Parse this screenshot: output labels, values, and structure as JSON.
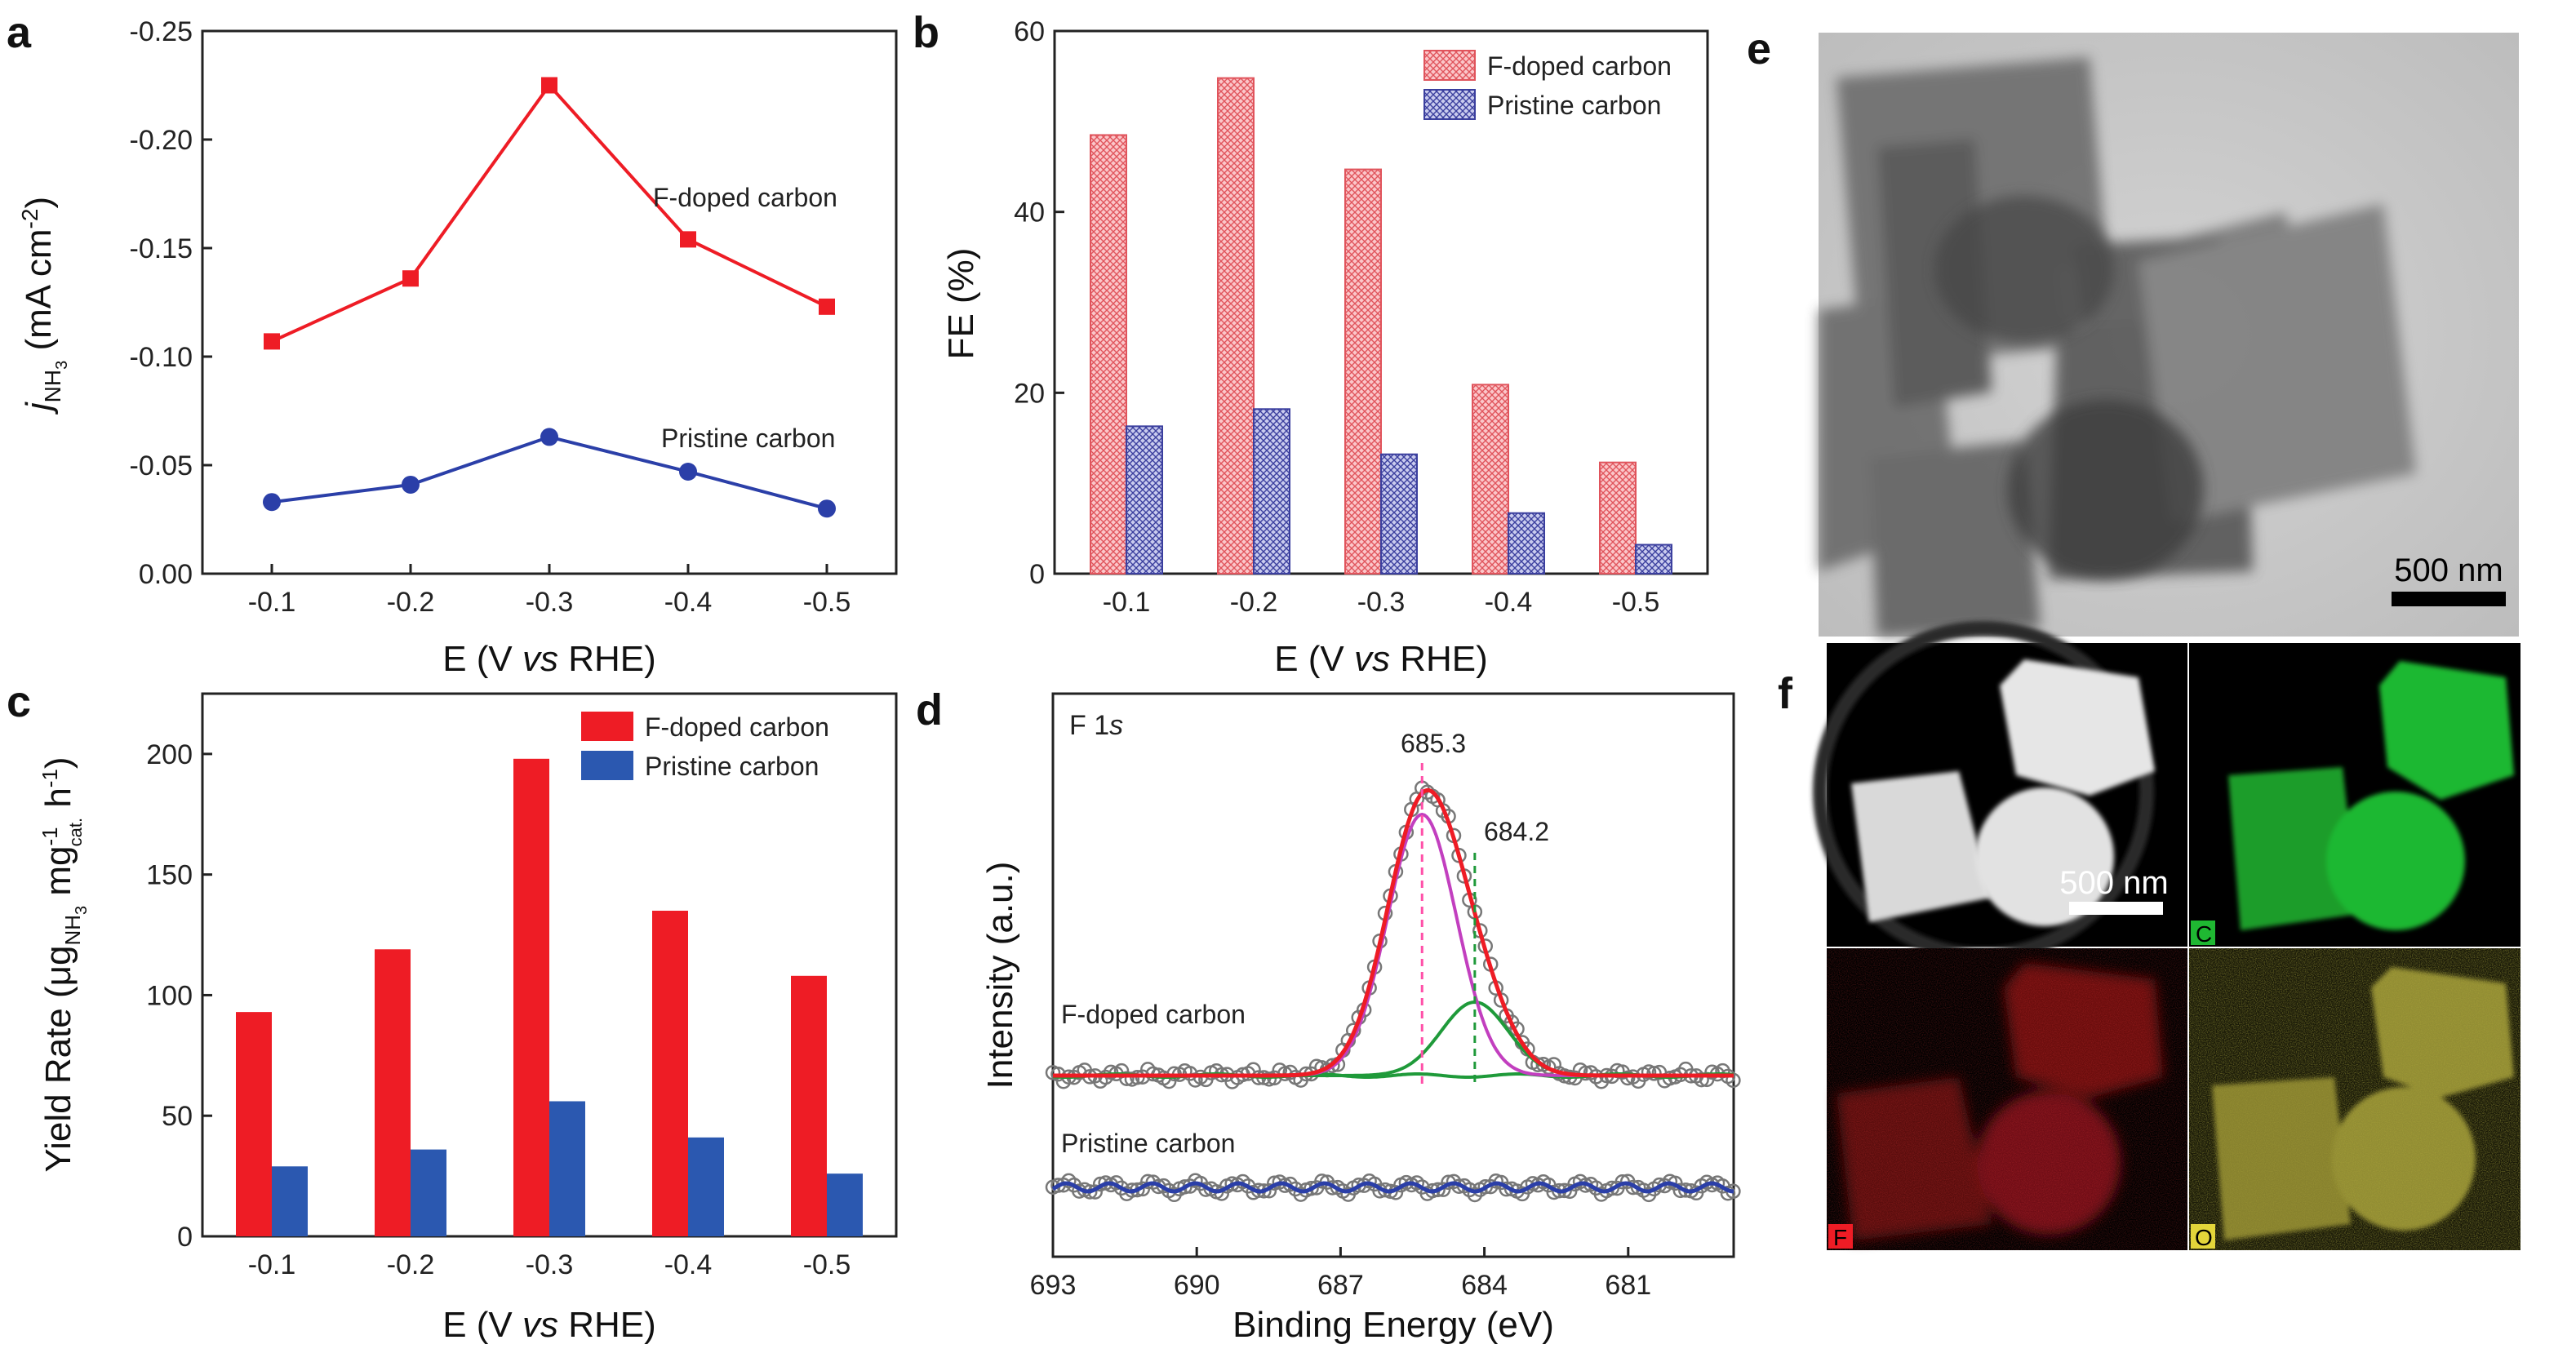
{
  "chart_data": [
    {
      "panel": "a",
      "type": "line",
      "categories": [
        "-0.1",
        "-0.2",
        "-0.3",
        "-0.4",
        "-0.5"
      ],
      "series": [
        {
          "name": "F-doped carbon",
          "values": [
            -0.107,
            -0.136,
            -0.225,
            -0.154,
            -0.123
          ],
          "color": "#ee1c25",
          "marker": "square"
        },
        {
          "name": "Pristine carbon",
          "values": [
            -0.033,
            -0.041,
            -0.063,
            -0.047,
            -0.03
          ],
          "color": "#2b3fa8",
          "marker": "circle"
        }
      ],
      "xlabel_pre": "E (V ",
      "xlabel_italic": "vs",
      "xlabel_post": " RHE)",
      "ylabel_j": "j",
      "ylabel_sub": "NH",
      "ylabel_subsub": "3",
      "ylabel_units": " (mA cm",
      "ylabel_sup": "-2",
      "ylabel_close": ")",
      "yticks": [
        "-0.25",
        "-0.20",
        "-0.15",
        "-0.10",
        "-0.05",
        "0.00"
      ],
      "ylim": [
        0.0,
        -0.25
      ]
    },
    {
      "panel": "b",
      "type": "bar",
      "categories": [
        "-0.1",
        "-0.2",
        "-0.3",
        "-0.4",
        "-0.5"
      ],
      "series": [
        {
          "name": "F-doped carbon",
          "values": [
            48.5,
            54.8,
            44.7,
            20.9,
            12.3
          ],
          "color": "#f7a8ad",
          "stroke": "#e0545c"
        },
        {
          "name": "Pristine carbon",
          "values": [
            16.3,
            18.2,
            13.2,
            6.7,
            3.2
          ],
          "color": "#a9acdc",
          "stroke": "#3b3f9e"
        }
      ],
      "xlabel_pre": "E (V ",
      "xlabel_italic": "vs",
      "xlabel_post": " RHE)",
      "ylabel": "FE (%)",
      "yticks": [
        "0",
        "20",
        "40",
        "60"
      ],
      "ylim": [
        0,
        60
      ]
    },
    {
      "panel": "c",
      "type": "bar",
      "categories": [
        "-0.1",
        "-0.2",
        "-0.3",
        "-0.4",
        "-0.5"
      ],
      "series": [
        {
          "name": "F-doped carbon",
          "values": [
            93,
            119,
            198,
            135,
            108
          ],
          "color": "#ee1c25"
        },
        {
          "name": "Pristine carbon",
          "values": [
            29,
            36,
            56,
            41,
            26
          ],
          "color": "#2b58b0"
        }
      ],
      "xlabel_pre": "E (V ",
      "xlabel_italic": "vs",
      "xlabel_post": " RHE)",
      "ylabel_pre": "Yield Rate (μg",
      "ylabel_sub1": "NH",
      "ylabel_subsub": "3",
      "ylabel_mid": " mg",
      "ylabel_sup1": "-1",
      "ylabel_sub2": "cat.",
      "ylabel_h": " h",
      "ylabel_sup2": "-1",
      "ylabel_close": ")",
      "yticks": [
        "0",
        "50",
        "100",
        "150",
        "200"
      ],
      "ylim": [
        0,
        225
      ]
    },
    {
      "panel": "d",
      "type": "line",
      "title_pre": "F 1",
      "title_italic": "s",
      "xlabel": "Binding Energy (eV)",
      "ylabel": "Intensity (a.u.)",
      "xticks": [
        "693",
        "690",
        "687",
        "684",
        "681"
      ],
      "xlim": [
        693,
        678.8
      ],
      "peaks": [
        {
          "label": "685.3",
          "position": 685.3,
          "color": "#ff4fa8"
        },
        {
          "label": "684.2",
          "position": 684.2,
          "color": "#1f9a3a"
        }
      ],
      "series": [
        {
          "name": "F-doped carbon"
        },
        {
          "name": "Pristine carbon"
        }
      ],
      "colors": {
        "fit_total": "#ee1c25",
        "fit_peak1": "#c23fbf",
        "fit_peak2": "#1f9a3a",
        "background": "#1f9a3a",
        "pristine": "#2b3fa8",
        "raw": "#777777"
      }
    }
  ],
  "images": {
    "e": {
      "panel": "e",
      "scale_bar": "500 nm",
      "alt": "TEM micrograph of F-doped carbon cubes"
    },
    "f": {
      "panel": "f",
      "scale_bar": "500 nm",
      "maps": [
        "C",
        "F",
        "O"
      ]
    }
  }
}
